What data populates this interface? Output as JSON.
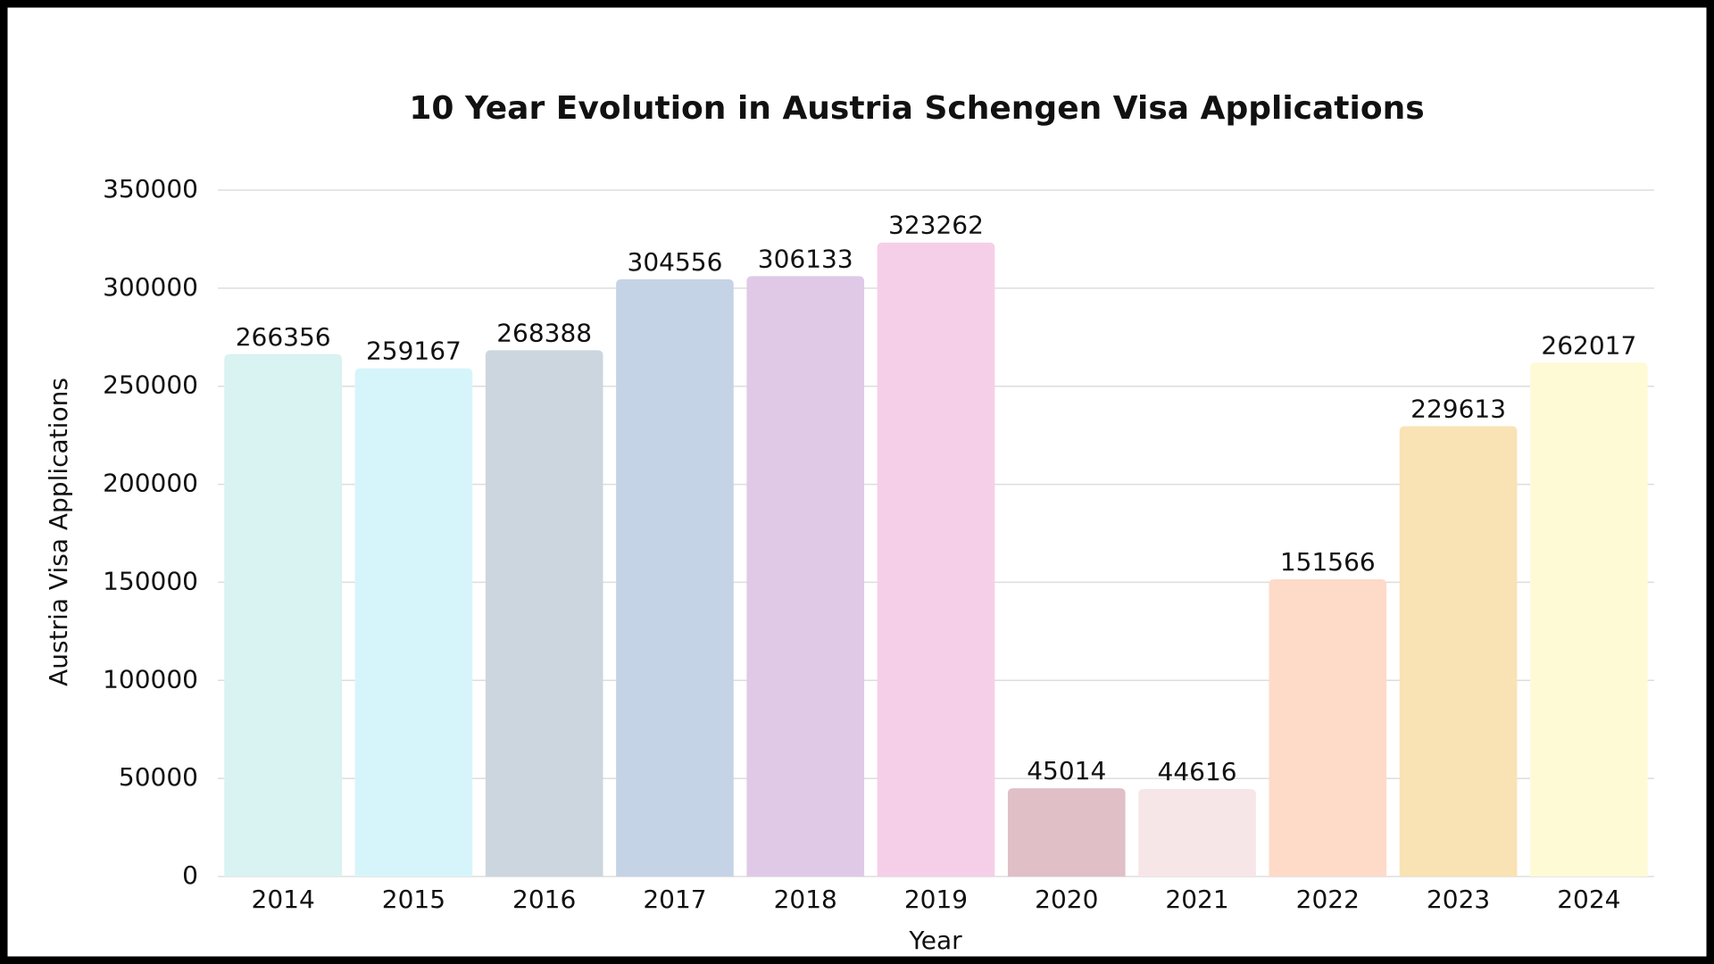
{
  "chart_data": {
    "type": "bar",
    "title": "10 Year Evolution in Austria Schengen Visa Applications",
    "x_label": "Year",
    "y_label": "Austria Visa Applications",
    "categories": [
      "2014",
      "2015",
      "2016",
      "2017",
      "2018",
      "2019",
      "2020",
      "2021",
      "2022",
      "2023",
      "2024"
    ],
    "values": [
      266356,
      259167,
      268388,
      304556,
      306133,
      323262,
      45014,
      44616,
      151566,
      229613,
      262017
    ],
    "colors": [
      "#d9f2f2",
      "#d6f5fb",
      "#ccd6de",
      "#c5d3e6",
      "#dfc9e7",
      "#f5cfe8",
      "#e0bfc7",
      "#f7e6e8",
      "#fedac8",
      "#f9e2b4",
      "#fefad6"
    ],
    "ylim": [
      0,
      350000
    ],
    "yticks": [
      0,
      50000,
      100000,
      150000,
      200000,
      250000,
      300000,
      350000
    ],
    "grid": true
  }
}
